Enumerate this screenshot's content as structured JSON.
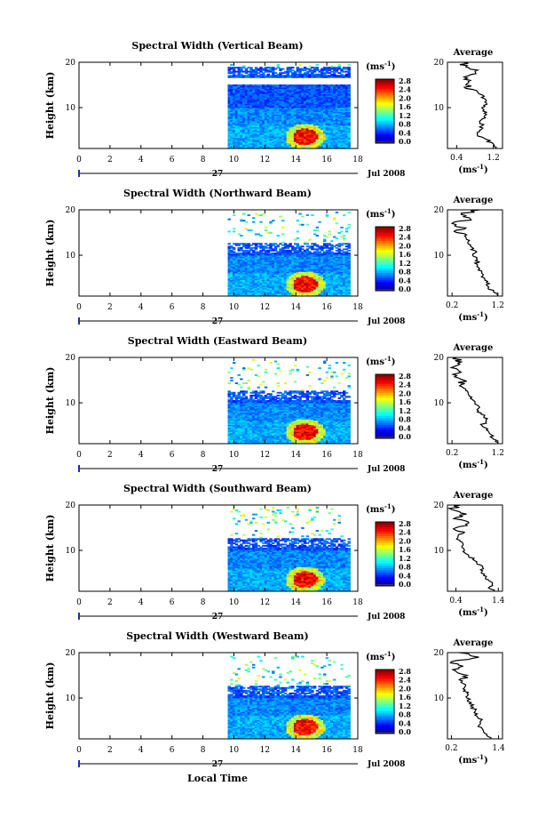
{
  "figure": {
    "xlabel": "Local Time",
    "date_label": "Jul 2008",
    "day_label": "27",
    "colorbar_unit": "(ms",
    "colorbar_unit_exp": "-1",
    "colorbar_unit_close": ")",
    "colorbar_ticks": [
      "0.0",
      "0.4",
      "0.8",
      "1.2",
      "1.6",
      "2.0",
      "2.4",
      "2.8"
    ],
    "height_label": "Height (km)",
    "avg_title": "Average",
    "avg_unit": "(ms",
    "avg_unit_exp": "-1",
    "avg_unit_close": ")"
  },
  "chart_data": [
    {
      "type": "heatmap",
      "title": "Spectral Width (Vertical Beam)",
      "xlabel": "Local Time",
      "ylabel": "Height (km)",
      "x_ticks": [
        "0",
        "2",
        "4",
        "6",
        "8",
        "10",
        "12",
        "14",
        "16",
        "18"
      ],
      "y_ticks": [
        "10",
        "20"
      ],
      "xlim": [
        0,
        18
      ],
      "ylim": [
        1,
        20
      ],
      "data_start_hour": 9.6,
      "data_end_hour": 17.5,
      "echo_top_km": 19.0,
      "echo_gap_km": [
        15.0,
        16.5
      ],
      "colorbar": {
        "label": "(ms-1)",
        "range": [
          0.0,
          2.8
        ],
        "colormap": "jet"
      },
      "average_profile": {
        "title": "Average",
        "xlabel": "(ms-1)",
        "x_ticks": [
          "0.4",
          "1.2"
        ],
        "xlim": [
          0.2,
          1.4
        ],
        "y_ticks": [
          "10",
          "20"
        ],
        "points": [
          [
            1.25,
            1
          ],
          [
            1.2,
            2
          ],
          [
            1.05,
            3
          ],
          [
            0.85,
            4
          ],
          [
            0.9,
            5
          ],
          [
            0.95,
            6
          ],
          [
            0.9,
            7
          ],
          [
            1.0,
            8
          ],
          [
            1.05,
            9
          ],
          [
            0.95,
            10
          ],
          [
            1.05,
            11
          ],
          [
            1.0,
            12
          ],
          [
            0.9,
            13
          ],
          [
            0.75,
            14
          ],
          [
            0.6,
            15
          ],
          [
            0.7,
            16
          ],
          [
            0.65,
            17
          ],
          [
            0.8,
            18
          ],
          [
            0.6,
            19
          ],
          [
            0.55,
            20
          ]
        ]
      }
    },
    {
      "type": "heatmap",
      "title": "Spectral Width (Northward Beam)",
      "xlabel": "Local Time",
      "ylabel": "Height (km)",
      "x_ticks": [
        "0",
        "2",
        "4",
        "6",
        "8",
        "10",
        "12",
        "14",
        "16",
        "18"
      ],
      "y_ticks": [
        "10",
        "20"
      ],
      "xlim": [
        0,
        18
      ],
      "ylim": [
        1,
        20
      ],
      "data_start_hour": 9.6,
      "data_end_hour": 17.5,
      "echo_top_km": 12.5,
      "echo_gap_km": [],
      "colorbar": {
        "label": "(ms-1)",
        "range": [
          0.0,
          2.8
        ],
        "colormap": "jet"
      },
      "average_profile": {
        "title": "Average",
        "xlabel": "(ms-1)",
        "x_ticks": [
          "0.2",
          "1.2"
        ],
        "xlim": [
          0.1,
          1.3
        ],
        "y_ticks": [
          "10",
          "20"
        ],
        "points": [
          [
            1.2,
            1
          ],
          [
            1.1,
            2
          ],
          [
            1.0,
            3
          ],
          [
            0.95,
            4
          ],
          [
            0.9,
            5
          ],
          [
            0.85,
            6
          ],
          [
            0.8,
            7
          ],
          [
            0.75,
            8
          ],
          [
            0.75,
            9
          ],
          [
            0.65,
            10
          ],
          [
            0.7,
            11
          ],
          [
            0.6,
            12
          ],
          [
            0.55,
            13
          ],
          [
            0.5,
            14
          ],
          [
            0.3,
            15
          ],
          [
            0.5,
            16
          ],
          [
            0.2,
            17
          ],
          [
            0.6,
            18
          ],
          [
            0.4,
            19
          ],
          [
            0.8,
            20
          ]
        ]
      }
    },
    {
      "type": "heatmap",
      "title": "Spectral Width (Eastward Beam)",
      "xlabel": "Local Time",
      "ylabel": "Height (km)",
      "x_ticks": [
        "0",
        "2",
        "4",
        "6",
        "8",
        "10",
        "12",
        "14",
        "16",
        "18"
      ],
      "y_ticks": [
        "10",
        "20"
      ],
      "xlim": [
        0,
        18
      ],
      "ylim": [
        1,
        20
      ],
      "data_start_hour": 9.6,
      "data_end_hour": 17.5,
      "echo_top_km": 12.5,
      "echo_gap_km": [],
      "colorbar": {
        "label": "(ms-1)",
        "range": [
          0.0,
          2.8
        ],
        "colormap": "jet"
      },
      "average_profile": {
        "title": "Average",
        "xlabel": "(ms-1)",
        "x_ticks": [
          "0.2",
          "1.2"
        ],
        "xlim": [
          0.1,
          1.3
        ],
        "y_ticks": [
          "10",
          "20"
        ],
        "points": [
          [
            1.2,
            1
          ],
          [
            1.1,
            2
          ],
          [
            1.05,
            3
          ],
          [
            0.95,
            4
          ],
          [
            0.85,
            5
          ],
          [
            0.95,
            6
          ],
          [
            0.9,
            7
          ],
          [
            0.75,
            8
          ],
          [
            0.8,
            9
          ],
          [
            0.7,
            10
          ],
          [
            0.6,
            11
          ],
          [
            0.55,
            12
          ],
          [
            0.5,
            13
          ],
          [
            0.4,
            14
          ],
          [
            0.45,
            15
          ],
          [
            0.3,
            16
          ],
          [
            0.35,
            17
          ],
          [
            0.25,
            18
          ],
          [
            0.4,
            19
          ],
          [
            0.3,
            20
          ]
        ]
      }
    },
    {
      "type": "heatmap",
      "title": "Spectral Width (Southward Beam)",
      "xlabel": "Local Time",
      "ylabel": "Height (km)",
      "x_ticks": [
        "0",
        "2",
        "4",
        "6",
        "8",
        "10",
        "12",
        "14",
        "16",
        "18"
      ],
      "y_ticks": [
        "10",
        "20"
      ],
      "xlim": [
        0,
        18
      ],
      "ylim": [
        1,
        20
      ],
      "data_start_hour": 9.6,
      "data_end_hour": 17.5,
      "echo_top_km": 12.5,
      "echo_gap_km": [],
      "colorbar": {
        "label": "(ms-1)",
        "range": [
          0.0,
          2.8
        ],
        "colormap": "jet"
      },
      "average_profile": {
        "title": "Average",
        "xlabel": "(ms-1)",
        "x_ticks": [
          "0.4",
          "1.4"
        ],
        "xlim": [
          0.2,
          1.5
        ],
        "y_ticks": [
          "10",
          "20"
        ],
        "points": [
          [
            1.3,
            1
          ],
          [
            1.2,
            2
          ],
          [
            1.25,
            3
          ],
          [
            1.1,
            4
          ],
          [
            1.0,
            5
          ],
          [
            1.05,
            6
          ],
          [
            0.9,
            7
          ],
          [
            0.8,
            8
          ],
          [
            0.7,
            9
          ],
          [
            0.6,
            10
          ],
          [
            0.55,
            11
          ],
          [
            0.5,
            12
          ],
          [
            0.45,
            13
          ],
          [
            0.6,
            14
          ],
          [
            0.4,
            15
          ],
          [
            0.7,
            16
          ],
          [
            0.35,
            17
          ],
          [
            0.65,
            18
          ],
          [
            0.3,
            19
          ],
          [
            0.5,
            20
          ]
        ]
      }
    },
    {
      "type": "heatmap",
      "title": "Spectral Width (Westward Beam)",
      "xlabel": "Local Time",
      "ylabel": "Height (km)",
      "x_ticks": [
        "0",
        "2",
        "4",
        "6",
        "8",
        "10",
        "12",
        "14",
        "16",
        "18"
      ],
      "y_ticks": [
        "10",
        "20"
      ],
      "xlim": [
        0,
        18
      ],
      "ylim": [
        1,
        20
      ],
      "data_start_hour": 9.6,
      "data_end_hour": 17.5,
      "echo_top_km": 12.5,
      "echo_gap_km": [],
      "colorbar": {
        "label": "(ms-1)",
        "range": [
          0.0,
          2.8
        ],
        "colormap": "jet"
      },
      "average_profile": {
        "title": "Average",
        "xlabel": "(ms-1)",
        "x_ticks": [
          "0.2",
          "1.4"
        ],
        "xlim": [
          0.1,
          1.5
        ],
        "y_ticks": [
          "10",
          "20"
        ],
        "points": [
          [
            1.2,
            1
          ],
          [
            1.1,
            2
          ],
          [
            1.0,
            3
          ],
          [
            0.9,
            4
          ],
          [
            0.95,
            5
          ],
          [
            0.85,
            6
          ],
          [
            0.8,
            7
          ],
          [
            0.75,
            8
          ],
          [
            0.7,
            9
          ],
          [
            0.6,
            10
          ],
          [
            0.6,
            11
          ],
          [
            0.5,
            12
          ],
          [
            0.55,
            13
          ],
          [
            0.4,
            14
          ],
          [
            0.6,
            15
          ],
          [
            0.3,
            16
          ],
          [
            0.5,
            17
          ],
          [
            0.2,
            18
          ],
          [
            0.9,
            19
          ],
          [
            0.4,
            20
          ]
        ]
      }
    }
  ]
}
